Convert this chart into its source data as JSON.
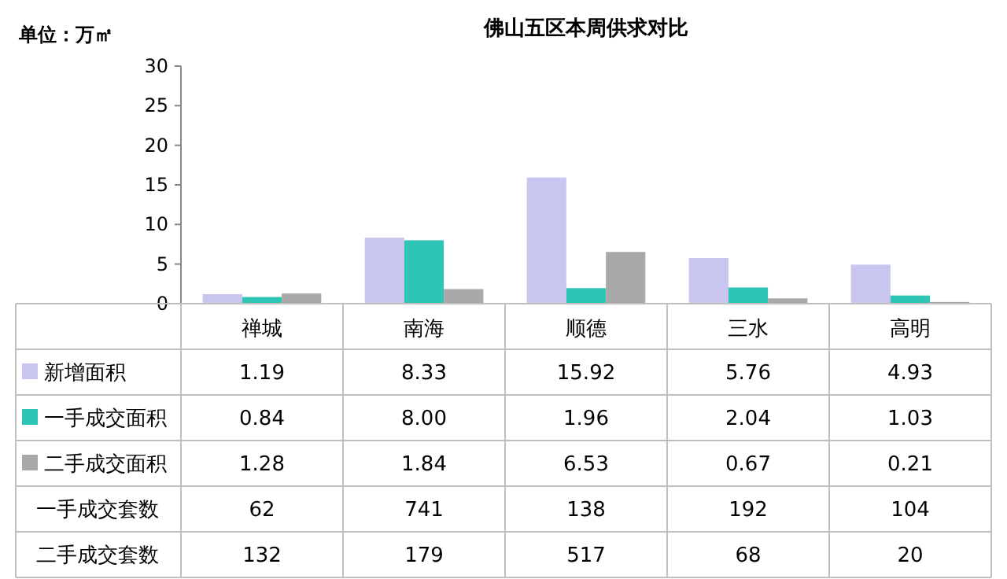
{
  "chart_data": {
    "type": "bar",
    "title": "佛山五区本周供求对比",
    "ylabel": "单位：万㎡",
    "categories": [
      "禅城",
      "南海",
      "顺德",
      "三水",
      "高明"
    ],
    "series": [
      {
        "name": "新增面积",
        "color": "#c8c6f0",
        "values": [
          1.19,
          8.33,
          15.92,
          5.76,
          4.93
        ],
        "value_labels": [
          "1.19",
          "8.33",
          "15.92",
          "5.76",
          "4.93"
        ]
      },
      {
        "name": "一手成交面积",
        "color": "#2ec4b6",
        "values": [
          0.84,
          8.0,
          1.96,
          2.04,
          1.03
        ],
        "value_labels": [
          "0.84",
          "8.00",
          "1.96",
          "2.04",
          "1.03"
        ]
      },
      {
        "name": "二手成交面积",
        "color": "#a9a9a9",
        "values": [
          1.28,
          1.84,
          6.53,
          0.67,
          0.21
        ],
        "value_labels": [
          "1.28",
          "1.84",
          "6.53",
          "0.67",
          "0.21"
        ]
      }
    ],
    "annotations": [
      "一手成交套数",
      "62",
      "741",
      "138",
      "192",
      "104",
      "二手成交套数",
      "132",
      "179",
      "517",
      "68",
      "20"
    ],
    "ylim": [
      0,
      30
    ],
    "yticks": [
      0,
      5,
      10,
      15,
      20,
      25,
      30
    ],
    "legend": "bottom"
  }
}
